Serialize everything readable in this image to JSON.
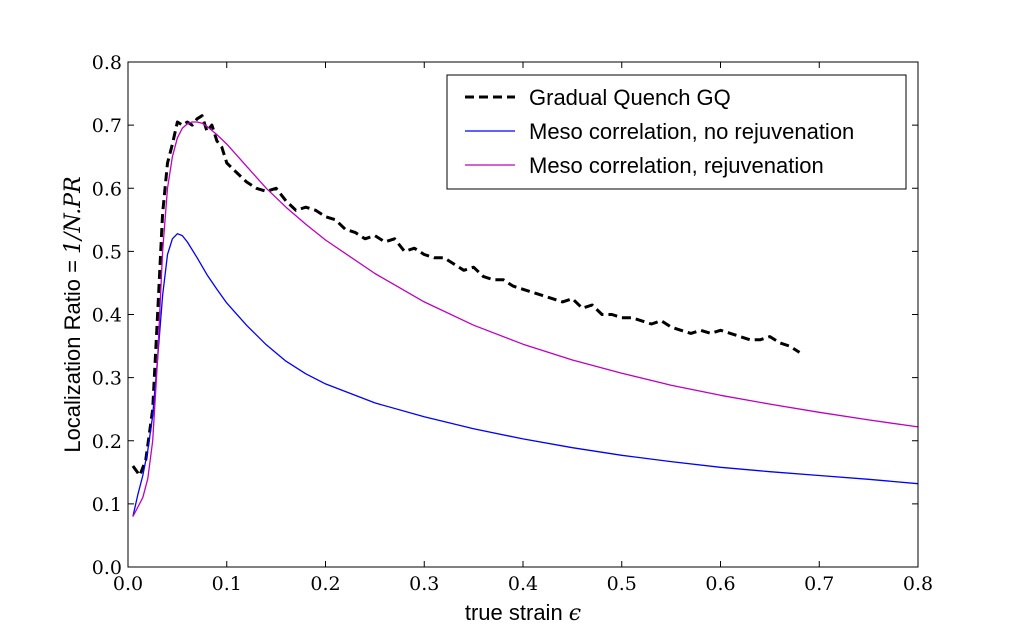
{
  "chart_data": {
    "type": "line",
    "title": "",
    "xlabel_text": "true strain ",
    "xlabel_math": "ϵ",
    "ylabel_text": "Localization Ratio = ",
    "ylabel_math": "1/N.PR",
    "xlim": [
      0.0,
      0.8
    ],
    "ylim": [
      0.0,
      0.8
    ],
    "xticks": [
      0.0,
      0.1,
      0.2,
      0.3,
      0.4,
      0.5,
      0.6,
      0.7,
      0.8
    ],
    "yticks": [
      0.0,
      0.1,
      0.2,
      0.3,
      0.4,
      0.5,
      0.6,
      0.7,
      0.8
    ],
    "xtick_labels": [
      "0.0",
      "0.1",
      "0.2",
      "0.3",
      "0.4",
      "0.5",
      "0.6",
      "0.7",
      "0.8"
    ],
    "ytick_labels": [
      "0.0",
      "0.1",
      "0.2",
      "0.3",
      "0.4",
      "0.5",
      "0.6",
      "0.7",
      "0.8"
    ],
    "grid": false,
    "legend_position": "top-right",
    "series": [
      {
        "name": "Gradual Quench GQ",
        "color": "#000000",
        "style": "dashed",
        "x": [
          0.005,
          0.012,
          0.018,
          0.025,
          0.03,
          0.035,
          0.04,
          0.045,
          0.05,
          0.055,
          0.06,
          0.065,
          0.07,
          0.075,
          0.08,
          0.085,
          0.09,
          0.095,
          0.1,
          0.11,
          0.12,
          0.13,
          0.14,
          0.15,
          0.16,
          0.17,
          0.18,
          0.19,
          0.2,
          0.21,
          0.22,
          0.23,
          0.24,
          0.25,
          0.26,
          0.27,
          0.28,
          0.29,
          0.3,
          0.31,
          0.32,
          0.33,
          0.34,
          0.35,
          0.36,
          0.37,
          0.38,
          0.39,
          0.4,
          0.41,
          0.42,
          0.43,
          0.44,
          0.45,
          0.46,
          0.47,
          0.48,
          0.49,
          0.5,
          0.51,
          0.52,
          0.53,
          0.54,
          0.55,
          0.56,
          0.57,
          0.58,
          0.59,
          0.6,
          0.61,
          0.62,
          0.63,
          0.64,
          0.65,
          0.66,
          0.67,
          0.68
        ],
        "values": [
          0.16,
          0.145,
          0.17,
          0.25,
          0.4,
          0.56,
          0.64,
          0.67,
          0.705,
          0.7,
          0.705,
          0.7,
          0.71,
          0.715,
          0.69,
          0.7,
          0.675,
          0.665,
          0.64,
          0.625,
          0.61,
          0.6,
          0.595,
          0.6,
          0.58,
          0.565,
          0.57,
          0.565,
          0.555,
          0.55,
          0.535,
          0.53,
          0.52,
          0.525,
          0.515,
          0.52,
          0.5,
          0.505,
          0.495,
          0.49,
          0.49,
          0.48,
          0.47,
          0.475,
          0.46,
          0.455,
          0.455,
          0.445,
          0.44,
          0.435,
          0.43,
          0.425,
          0.42,
          0.425,
          0.41,
          0.415,
          0.4,
          0.4,
          0.395,
          0.395,
          0.39,
          0.385,
          0.39,
          0.38,
          0.375,
          0.37,
          0.375,
          0.37,
          0.375,
          0.37,
          0.365,
          0.36,
          0.36,
          0.365,
          0.355,
          0.35,
          0.34
        ]
      },
      {
        "name": "Meso correlation, no rejuvenation",
        "color": "#0000ff",
        "style": "solid",
        "x": [
          0.005,
          0.01,
          0.015,
          0.02,
          0.025,
          0.03,
          0.035,
          0.04,
          0.045,
          0.05,
          0.055,
          0.06,
          0.07,
          0.08,
          0.09,
          0.1,
          0.12,
          0.14,
          0.16,
          0.18,
          0.2,
          0.25,
          0.3,
          0.35,
          0.4,
          0.45,
          0.5,
          0.55,
          0.6,
          0.65,
          0.7,
          0.75,
          0.8
        ],
        "values": [
          0.08,
          0.115,
          0.145,
          0.185,
          0.24,
          0.33,
          0.43,
          0.495,
          0.52,
          0.528,
          0.525,
          0.515,
          0.49,
          0.463,
          0.44,
          0.418,
          0.383,
          0.352,
          0.326,
          0.306,
          0.29,
          0.26,
          0.238,
          0.219,
          0.203,
          0.189,
          0.177,
          0.167,
          0.158,
          0.151,
          0.145,
          0.139,
          0.132
        ]
      },
      {
        "name": "Meso correlation, rejuvenation",
        "color": "#bf00bf",
        "style": "solid",
        "x": [
          0.005,
          0.01,
          0.015,
          0.02,
          0.025,
          0.03,
          0.035,
          0.04,
          0.045,
          0.05,
          0.055,
          0.06,
          0.065,
          0.07,
          0.075,
          0.08,
          0.09,
          0.1,
          0.12,
          0.14,
          0.16,
          0.18,
          0.2,
          0.25,
          0.3,
          0.35,
          0.4,
          0.45,
          0.5,
          0.55,
          0.6,
          0.65,
          0.7,
          0.75,
          0.8
        ],
        "values": [
          0.08,
          0.095,
          0.11,
          0.14,
          0.2,
          0.33,
          0.5,
          0.6,
          0.65,
          0.68,
          0.695,
          0.702,
          0.705,
          0.705,
          0.703,
          0.698,
          0.685,
          0.67,
          0.635,
          0.6,
          0.57,
          0.543,
          0.518,
          0.465,
          0.42,
          0.383,
          0.353,
          0.328,
          0.307,
          0.288,
          0.272,
          0.258,
          0.245,
          0.233,
          0.222
        ]
      }
    ]
  }
}
